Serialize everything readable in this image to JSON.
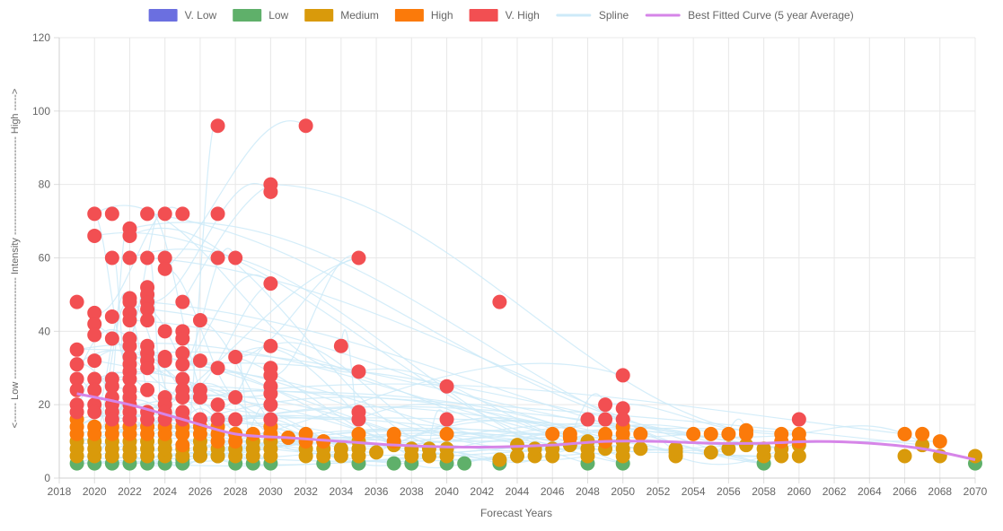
{
  "chart_data": {
    "type": "scatter",
    "xlabel": "Forecast Years",
    "ylabel": "<------ Low ------------------------------- Intensity ------------------------------ High ----->",
    "xlim": [
      2018,
      2070
    ],
    "ylim": [
      0,
      120
    ],
    "x_ticks": [
      "2018",
      "2020",
      "2022",
      "2024",
      "2026",
      "2028",
      "2030",
      "2032",
      "2034",
      "2036",
      "2038",
      "2040",
      "2042",
      "2044",
      "2046",
      "2048",
      "2050",
      "2052",
      "2054",
      "2056",
      "2058",
      "2060",
      "2062",
      "2064",
      "2066",
      "2068",
      "2070"
    ],
    "y_ticks": [
      "0",
      "20",
      "40",
      "60",
      "80",
      "100",
      "120"
    ],
    "grid": true,
    "legend_position": "top",
    "legend": [
      {
        "label": "V. Low",
        "color": "#6b6fe0",
        "kind": "box"
      },
      {
        "label": "Low",
        "color": "#5fb06a",
        "kind": "box"
      },
      {
        "label": "Medium",
        "color": "#d99a0b",
        "kind": "box"
      },
      {
        "label": "High",
        "color": "#fb7a0a",
        "kind": "box"
      },
      {
        "label": "V. High",
        "color": "#f24f52",
        "kind": "box"
      },
      {
        "label": "Spline",
        "color": "#cdeaf8",
        "kind": "line"
      },
      {
        "label": "Best Fitted Curve (5 year Average)",
        "color": "#d685e8",
        "kind": "line"
      }
    ],
    "series": [
      {
        "name": "Low",
        "color": "#5fb06a",
        "points": [
          [
            2019,
            4
          ],
          [
            2020,
            4
          ],
          [
            2021,
            4
          ],
          [
            2022,
            4
          ],
          [
            2023,
            4
          ],
          [
            2024,
            4
          ],
          [
            2024,
            6
          ],
          [
            2025,
            4
          ],
          [
            2025,
            5
          ],
          [
            2026,
            6
          ],
          [
            2027,
            6
          ],
          [
            2028,
            4
          ],
          [
            2029,
            4
          ],
          [
            2030,
            4
          ],
          [
            2033,
            4
          ],
          [
            2035,
            4
          ],
          [
            2037,
            4
          ],
          [
            2038,
            4
          ],
          [
            2040,
            4
          ],
          [
            2041,
            4
          ],
          [
            2043,
            4
          ],
          [
            2043,
            5
          ],
          [
            2048,
            4
          ],
          [
            2050,
            4
          ],
          [
            2058,
            4
          ],
          [
            2070,
            4
          ]
        ]
      },
      {
        "name": "Medium",
        "color": "#d99a0b",
        "points": [
          [
            2019,
            6
          ],
          [
            2019,
            8
          ],
          [
            2019,
            10
          ],
          [
            2020,
            6
          ],
          [
            2020,
            8
          ],
          [
            2020,
            10
          ],
          [
            2021,
            6
          ],
          [
            2021,
            8
          ],
          [
            2021,
            10
          ],
          [
            2022,
            6
          ],
          [
            2022,
            8
          ],
          [
            2022,
            10
          ],
          [
            2023,
            6
          ],
          [
            2023,
            8
          ],
          [
            2023,
            10
          ],
          [
            2024,
            6
          ],
          [
            2024,
            8
          ],
          [
            2024,
            10
          ],
          [
            2025,
            6
          ],
          [
            2025,
            8
          ],
          [
            2026,
            6
          ],
          [
            2026,
            8
          ],
          [
            2026,
            10
          ],
          [
            2027,
            6
          ],
          [
            2027,
            8
          ],
          [
            2028,
            6
          ],
          [
            2028,
            8
          ],
          [
            2029,
            6
          ],
          [
            2029,
            8
          ],
          [
            2029,
            10
          ],
          [
            2030,
            6
          ],
          [
            2030,
            8
          ],
          [
            2030,
            10
          ],
          [
            2031,
            11
          ],
          [
            2032,
            6
          ],
          [
            2032,
            8
          ],
          [
            2033,
            6
          ],
          [
            2033,
            8
          ],
          [
            2033,
            10
          ],
          [
            2034,
            6
          ],
          [
            2034,
            8
          ],
          [
            2035,
            6
          ],
          [
            2035,
            8
          ],
          [
            2035,
            10
          ],
          [
            2036,
            7
          ],
          [
            2037,
            9
          ],
          [
            2038,
            6
          ],
          [
            2038,
            8
          ],
          [
            2039,
            6
          ],
          [
            2039,
            8
          ],
          [
            2040,
            6
          ],
          [
            2040,
            8
          ],
          [
            2043,
            5
          ],
          [
            2044,
            6
          ],
          [
            2044,
            9
          ],
          [
            2045,
            6
          ],
          [
            2045,
            8
          ],
          [
            2046,
            6
          ],
          [
            2046,
            8
          ],
          [
            2047,
            9
          ],
          [
            2048,
            6
          ],
          [
            2048,
            8
          ],
          [
            2048,
            10
          ],
          [
            2049,
            8
          ],
          [
            2049,
            10
          ],
          [
            2050,
            6
          ],
          [
            2050,
            8
          ],
          [
            2050,
            10
          ],
          [
            2051,
            8
          ],
          [
            2053,
            6
          ],
          [
            2053,
            7
          ],
          [
            2053,
            8
          ],
          [
            2055,
            7
          ],
          [
            2056,
            8
          ],
          [
            2057,
            9
          ],
          [
            2058,
            6
          ],
          [
            2058,
            8
          ],
          [
            2059,
            6
          ],
          [
            2059,
            8
          ],
          [
            2060,
            6
          ],
          [
            2060,
            9
          ],
          [
            2066,
            6
          ],
          [
            2067,
            9
          ],
          [
            2068,
            6
          ],
          [
            2070,
            6
          ]
        ]
      },
      {
        "name": "High",
        "color": "#fb7a0a",
        "points": [
          [
            2019,
            12
          ],
          [
            2019,
            14
          ],
          [
            2019,
            16
          ],
          [
            2020,
            12
          ],
          [
            2020,
            14
          ],
          [
            2021,
            12
          ],
          [
            2021,
            14
          ],
          [
            2022,
            12
          ],
          [
            2022,
            14
          ],
          [
            2023,
            12
          ],
          [
            2023,
            14
          ],
          [
            2024,
            12
          ],
          [
            2024,
            14
          ],
          [
            2025,
            9
          ],
          [
            2025,
            12
          ],
          [
            2025,
            14
          ],
          [
            2026,
            12
          ],
          [
            2026,
            14
          ],
          [
            2027,
            10
          ],
          [
            2027,
            12
          ],
          [
            2027,
            14
          ],
          [
            2028,
            10
          ],
          [
            2028,
            12
          ],
          [
            2029,
            12
          ],
          [
            2030,
            12
          ],
          [
            2030,
            14
          ],
          [
            2031,
            11
          ],
          [
            2032,
            10
          ],
          [
            2032,
            12
          ],
          [
            2033,
            10
          ],
          [
            2035,
            12
          ],
          [
            2037,
            10
          ],
          [
            2037,
            12
          ],
          [
            2040,
            12
          ],
          [
            2046,
            12
          ],
          [
            2047,
            11
          ],
          [
            2047,
            12
          ],
          [
            2049,
            10
          ],
          [
            2049,
            12
          ],
          [
            2050,
            12
          ],
          [
            2050,
            14
          ],
          [
            2051,
            12
          ],
          [
            2054,
            12
          ],
          [
            2055,
            12
          ],
          [
            2056,
            12
          ],
          [
            2057,
            12
          ],
          [
            2057,
            13
          ],
          [
            2059,
            10
          ],
          [
            2059,
            12
          ],
          [
            2060,
            10
          ],
          [
            2060,
            12
          ],
          [
            2066,
            12
          ],
          [
            2067,
            12
          ],
          [
            2068,
            10
          ]
        ]
      },
      {
        "name": "V. High",
        "color": "#f24f52",
        "points": [
          [
            2019,
            48
          ],
          [
            2019,
            35
          ],
          [
            2019,
            31
          ],
          [
            2019,
            27
          ],
          [
            2019,
            24
          ],
          [
            2019,
            20
          ],
          [
            2019,
            18
          ],
          [
            2020,
            72
          ],
          [
            2020,
            66
          ],
          [
            2020,
            45
          ],
          [
            2020,
            42
          ],
          [
            2020,
            39
          ],
          [
            2020,
            32
          ],
          [
            2020,
            27
          ],
          [
            2020,
            24
          ],
          [
            2020,
            20
          ],
          [
            2020,
            18
          ],
          [
            2021,
            72
          ],
          [
            2021,
            60
          ],
          [
            2021,
            44
          ],
          [
            2021,
            38
          ],
          [
            2021,
            27
          ],
          [
            2021,
            25
          ],
          [
            2021,
            22
          ],
          [
            2021,
            20
          ],
          [
            2021,
            18
          ],
          [
            2021,
            16
          ],
          [
            2022,
            68
          ],
          [
            2022,
            66
          ],
          [
            2022,
            60
          ],
          [
            2022,
            49
          ],
          [
            2022,
            48
          ],
          [
            2022,
            45
          ],
          [
            2022,
            43
          ],
          [
            2022,
            38
          ],
          [
            2022,
            36
          ],
          [
            2022,
            33
          ],
          [
            2022,
            31
          ],
          [
            2022,
            29
          ],
          [
            2022,
            27
          ],
          [
            2022,
            24
          ],
          [
            2022,
            22
          ],
          [
            2022,
            20
          ],
          [
            2022,
            18
          ],
          [
            2022,
            16
          ],
          [
            2023,
            72
          ],
          [
            2023,
            60
          ],
          [
            2023,
            52
          ],
          [
            2023,
            50
          ],
          [
            2023,
            48
          ],
          [
            2023,
            46
          ],
          [
            2023,
            43
          ],
          [
            2023,
            36
          ],
          [
            2023,
            34
          ],
          [
            2023,
            32
          ],
          [
            2023,
            30
          ],
          [
            2023,
            24
          ],
          [
            2023,
            18
          ],
          [
            2023,
            16
          ],
          [
            2024,
            72
          ],
          [
            2024,
            60
          ],
          [
            2024,
            57
          ],
          [
            2024,
            40
          ],
          [
            2024,
            33
          ],
          [
            2024,
            32
          ],
          [
            2024,
            22
          ],
          [
            2024,
            20
          ],
          [
            2024,
            18
          ],
          [
            2024,
            16
          ],
          [
            2025,
            72
          ],
          [
            2025,
            48
          ],
          [
            2025,
            40
          ],
          [
            2025,
            38
          ],
          [
            2025,
            34
          ],
          [
            2025,
            31
          ],
          [
            2025,
            27
          ],
          [
            2025,
            24
          ],
          [
            2025,
            22
          ],
          [
            2025,
            18
          ],
          [
            2025,
            16
          ],
          [
            2026,
            43
          ],
          [
            2026,
            32
          ],
          [
            2026,
            24
          ],
          [
            2026,
            22
          ],
          [
            2026,
            16
          ],
          [
            2027,
            96
          ],
          [
            2027,
            72
          ],
          [
            2027,
            60
          ],
          [
            2027,
            30
          ],
          [
            2027,
            20
          ],
          [
            2027,
            16
          ],
          [
            2028,
            60
          ],
          [
            2028,
            33
          ],
          [
            2028,
            22
          ],
          [
            2028,
            16
          ],
          [
            2030,
            80
          ],
          [
            2030,
            78
          ],
          [
            2030,
            53
          ],
          [
            2030,
            36
          ],
          [
            2030,
            30
          ],
          [
            2030,
            28
          ],
          [
            2030,
            25
          ],
          [
            2030,
            23
          ],
          [
            2030,
            20
          ],
          [
            2030,
            16
          ],
          [
            2032,
            96
          ],
          [
            2034,
            36
          ],
          [
            2035,
            60
          ],
          [
            2035,
            29
          ],
          [
            2035,
            18
          ],
          [
            2035,
            16
          ],
          [
            2040,
            25
          ],
          [
            2040,
            16
          ],
          [
            2043,
            48
          ],
          [
            2048,
            16
          ],
          [
            2049,
            20
          ],
          [
            2049,
            16
          ],
          [
            2050,
            28
          ],
          [
            2050,
            19
          ],
          [
            2050,
            16
          ],
          [
            2060,
            16
          ]
        ]
      }
    ],
    "best_fit_curve": {
      "name": "Best Fitted Curve (5 year Average)",
      "x": [
        2019,
        2022,
        2025,
        2028,
        2031,
        2034,
        2037,
        2040,
        2043,
        2046,
        2049,
        2052,
        2055,
        2058,
        2061,
        2064,
        2067,
        2070
      ],
      "y": [
        23,
        20,
        16,
        12,
        11,
        10,
        9,
        8.5,
        8.5,
        9,
        10,
        10,
        9.5,
        9.5,
        10,
        9.5,
        8,
        5
      ]
    },
    "spline": {
      "name": "Spline",
      "color": "#cdeaf8"
    }
  }
}
